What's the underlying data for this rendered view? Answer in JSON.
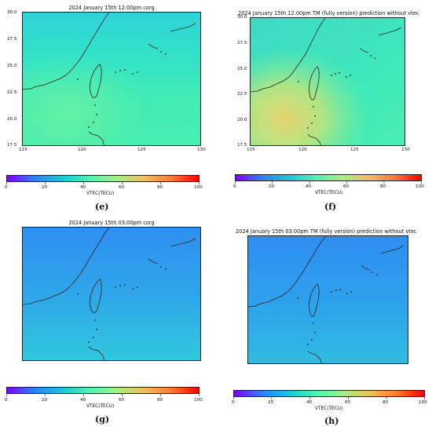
{
  "panels": [
    {
      "title": "2024 January 15th 12:00pm corg",
      "caption": "(e)",
      "colorbar_label": "VTEC(TECU)",
      "x_ticks": [
        "115",
        "120",
        "125",
        "130"
      ],
      "y_ticks": [
        "30.0",
        "27.5",
        "25.0",
        "22.5",
        "20.0",
        "17.5"
      ],
      "colorbar_ticks": [
        "0",
        "20",
        "40",
        "60",
        "80",
        "100"
      ]
    },
    {
      "title": "2024 January 15th 12:00pm TM (fully version) prediction without vtec",
      "caption": "(f)",
      "colorbar_label": "VTEC(TECU)",
      "x_ticks": [
        "115",
        "120",
        "125",
        "130"
      ],
      "y_ticks": [
        "30.0",
        "27.5",
        "25.0",
        "22.5",
        "20.0",
        "17.5"
      ],
      "colorbar_ticks": [
        "0",
        "20",
        "40",
        "60",
        "80",
        "100"
      ]
    },
    {
      "title": "2024 January 15th 03:00pm corg",
      "caption": "(g)",
      "colorbar_label": "VTEC(TECU)",
      "x_ticks": [],
      "y_ticks": [],
      "colorbar_ticks": [
        "0",
        "20",
        "40",
        "60",
        "80",
        "100"
      ]
    },
    {
      "title": "2024 January 15th 03:00pm TM (fully version) prediction without vtec",
      "caption": "(h)",
      "colorbar_label": "VTEC(TECU)",
      "x_ticks": [],
      "y_ticks": [],
      "colorbar_ticks": [
        "0",
        "20",
        "40",
        "60",
        "80",
        "100"
      ]
    }
  ],
  "colormap": [
    "#8000ff",
    "#2f80f6",
    "#1ac6d9",
    "#4ff2b0",
    "#a4f08a",
    "#f0c060",
    "#ff7a36",
    "#ff0000"
  ]
}
